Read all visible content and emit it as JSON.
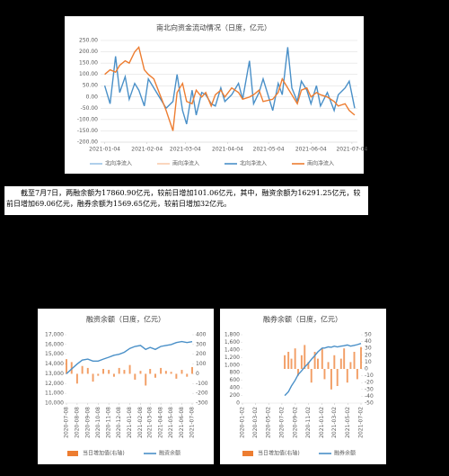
{
  "chart_data": [
    {
      "type": "line",
      "title": "南北向资金流动情况（日度，亿元）",
      "grid": true,
      "x": [
        "2021-01-04",
        "2021-01-08",
        "2021-01-12",
        "2021-01-15",
        "2021-01-19",
        "2021-01-22",
        "2021-01-26",
        "2021-01-29",
        "2021-02-02",
        "2021-02-05",
        "2021-02-09",
        "2021-02-18",
        "2021-02-23",
        "2021-02-26",
        "2021-03-02",
        "2021-03-05",
        "2021-03-09",
        "2021-03-12",
        "2021-03-16",
        "2021-03-19",
        "2021-03-23",
        "2021-03-26",
        "2021-03-30",
        "2021-04-02",
        "2021-04-07",
        "2021-04-12",
        "2021-04-15",
        "2021-04-20",
        "2021-04-23",
        "2021-04-27",
        "2021-04-30",
        "2021-05-07",
        "2021-05-11",
        "2021-05-14",
        "2021-05-18",
        "2021-05-21",
        "2021-05-25",
        "2021-05-28",
        "2021-06-01",
        "2021-06-04",
        "2021-06-08",
        "2021-06-11",
        "2021-06-16",
        "2021-06-21",
        "2021-06-24",
        "2021-06-29",
        "2021-07-02",
        "2021-07-06"
      ],
      "xlim": [
        "2021-01-01",
        "2021-07-08"
      ],
      "xticks": [
        "2021-01-04",
        "2021-02-04",
        "2021-03-04",
        "2021-04-04",
        "2021-05-04",
        "2021-06-04",
        "2021-07-04"
      ],
      "ylim": [
        -200,
        250
      ],
      "yticks": [
        {
          "value": -200,
          "label": "-200.00"
        },
        {
          "value": -150,
          "label": "-150.00"
        },
        {
          "value": -100,
          "label": "-100.00"
        },
        {
          "value": -50,
          "label": "-50.00"
        },
        {
          "value": 0,
          "label": "0.00"
        },
        {
          "value": 50,
          "label": "50.00"
        },
        {
          "value": 100,
          "label": "100.00"
        },
        {
          "value": 150,
          "label": "150.00"
        },
        {
          "value": 200,
          "label": "200.00"
        },
        {
          "value": 250,
          "label": "250.00"
        }
      ],
      "series": [
        {
          "name": "北向净流入",
          "color": "#9dc3e6"
        },
        {
          "name": "南向净流入",
          "color": "#f8cbad"
        },
        {
          "name": "北向净流入",
          "color": "#4a90c8",
          "values": [
            50,
            -30,
            180,
            20,
            90,
            -10,
            60,
            30,
            -40,
            80,
            40,
            -50,
            -20,
            100,
            -60,
            -120,
            30,
            -80,
            20,
            10,
            -30,
            -40,
            40,
            -20,
            10,
            60,
            -10,
            160,
            -30,
            20,
            80,
            -60,
            60,
            10,
            220,
            40,
            -20,
            70,
            30,
            -30,
            50,
            -40,
            20,
            -60,
            10,
            40,
            70,
            -50
          ]
        },
        {
          "name": "南向净流入",
          "color": "#ed7d31",
          "values": [
            100,
            120,
            110,
            140,
            160,
            150,
            200,
            220,
            120,
            100,
            80,
            -60,
            -150,
            20,
            60,
            -20,
            -30,
            30,
            0,
            20,
            -40,
            10,
            30,
            0,
            40,
            20,
            -10,
            0,
            10,
            30,
            -20,
            -10,
            20,
            80,
            40,
            10,
            -30,
            30,
            40,
            0,
            20,
            10,
            0,
            -20,
            -40,
            -30,
            -60,
            -80
          ]
        }
      ]
    },
    {
      "type": "bar-line",
      "title": "融资余额（日度，亿元）",
      "x": [
        "2020-07-08",
        "2020-07-23",
        "2020-08-08",
        "2020-08-23",
        "2020-09-08",
        "2020-09-23",
        "2020-10-08",
        "2020-10-23",
        "2020-11-08",
        "2020-11-23",
        "2020-12-08",
        "2020-12-23",
        "2021-01-08",
        "2021-01-23",
        "2021-02-08",
        "2021-02-23",
        "2021-03-08",
        "2021-03-23",
        "2021-04-08",
        "2021-04-23",
        "2021-05-08",
        "2021-05-23",
        "2021-06-08",
        "2021-06-23",
        "2021-07-08"
      ],
      "xlim": [
        "2020-07-08",
        "2021-07-08"
      ],
      "xticks": [
        "2020-07-08",
        "2020-08-08",
        "2020-09-08",
        "2020-10-08",
        "2020-11-08",
        "2020-12-08",
        "2021-01-08",
        "2021-02-08",
        "2021-03-08",
        "2021-04-08",
        "2021-05-08",
        "2021-06-08",
        "2021-07-08"
      ],
      "ylim": [
        10000,
        17000
      ],
      "yticks": [
        {
          "value": 10000,
          "label": "10,000"
        },
        {
          "value": 11000,
          "label": "11,000"
        },
        {
          "value": 12000,
          "label": "12,000"
        },
        {
          "value": 13000,
          "label": "13,000"
        },
        {
          "value": 14000,
          "label": "14,000"
        },
        {
          "value": 15000,
          "label": "15,000"
        },
        {
          "value": 16000,
          "label": "16,000"
        },
        {
          "value": 17000,
          "label": "17,000"
        }
      ],
      "y2lim": [
        -300,
        400
      ],
      "y2ticks": [
        -300,
        -200,
        -100,
        0,
        100,
        200,
        300,
        400
      ],
      "series": [
        {
          "name": "当日增加值(右轴)",
          "color": "#ed7d31",
          "type": "bar",
          "axis": "y2",
          "values": [
            150,
            120,
            -100,
            80,
            60,
            -80,
            -20,
            50,
            40,
            -30,
            60,
            40,
            90,
            -60,
            30,
            -120,
            50,
            -40,
            60,
            30,
            20,
            -50,
            40,
            -30,
            69
          ]
        },
        {
          "name": "融资余额",
          "color": "#4a90c8",
          "type": "line",
          "values": [
            13000,
            13500,
            14000,
            14400,
            14500,
            14300,
            14300,
            14500,
            14700,
            14900,
            15000,
            15200,
            15600,
            15800,
            15900,
            15500,
            15700,
            15500,
            15800,
            15900,
            16000,
            16200,
            16300,
            16200,
            16291
          ]
        }
      ]
    },
    {
      "type": "bar-line",
      "title": "融券余额（日度，亿元）",
      "x": [
        "2020-07-15",
        "2020-08-01",
        "2020-08-15",
        "2020-09-01",
        "2020-09-15",
        "2020-10-01",
        "2020-10-15",
        "2020-11-01",
        "2020-11-15",
        "2020-12-01",
        "2020-12-15",
        "2021-01-04",
        "2021-01-15",
        "2021-02-01",
        "2021-02-15",
        "2021-03-01",
        "2021-03-15",
        "2021-04-01",
        "2021-04-15",
        "2021-04-30",
        "2021-05-15",
        "2021-06-01",
        "2021-06-15",
        "2021-07-02"
      ],
      "xlim": [
        "2020-01-02",
        "2021-07-02"
      ],
      "xticks": [
        "2020-01-02",
        "2020-03-02",
        "2020-05-02",
        "2020-07-02",
        "2020-09-02",
        "2020-11-02",
        "2021-01-02",
        "2021-03-02",
        "2021-05-02",
        "2021-07-02"
      ],
      "ylim": [
        0,
        1800
      ],
      "yticks": [
        0,
        200,
        400,
        600,
        800,
        {
          "value": 1000,
          "label": "1,000"
        },
        {
          "value": 1200,
          "label": "1,200"
        },
        {
          "value": 1400,
          "label": "1,400"
        },
        {
          "value": 1600,
          "label": "1,600"
        },
        {
          "value": 1800,
          "label": "1,800"
        }
      ],
      "y2lim": [
        -50,
        50
      ],
      "y2ticks": [
        -50,
        -40,
        -30,
        -20,
        -10,
        0,
        10,
        20,
        30,
        40,
        50
      ],
      "series": [
        {
          "name": "当日增加值(右轴)",
          "color": "#ed7d31",
          "type": "bar",
          "axis": "y2",
          "values": [
            20,
            25,
            15,
            30,
            -10,
            20,
            35,
            10,
            -20,
            25,
            15,
            30,
            -15,
            10,
            -30,
            20,
            -25,
            15,
            30,
            -20,
            10,
            25,
            -15,
            32
          ]
        },
        {
          "name": "融券余额",
          "color": "#4a90c8",
          "type": "line",
          "values": [
            200,
            300,
            450,
            600,
            750,
            850,
            950,
            1050,
            1150,
            1250,
            1350,
            1450,
            1450,
            1480,
            1470,
            1500,
            1480,
            1500,
            1510,
            1530,
            1500,
            1520,
            1540,
            1570
          ]
        }
      ]
    }
  ],
  "summary": {
    "text": "截至7月7日，两融余额为17860.90亿元，较前日增加101.06亿元，其中，融资余额为16291.25亿元，较前日增加69.06亿元，融券余额为1569.65亿元，较前日增加32亿元。"
  }
}
